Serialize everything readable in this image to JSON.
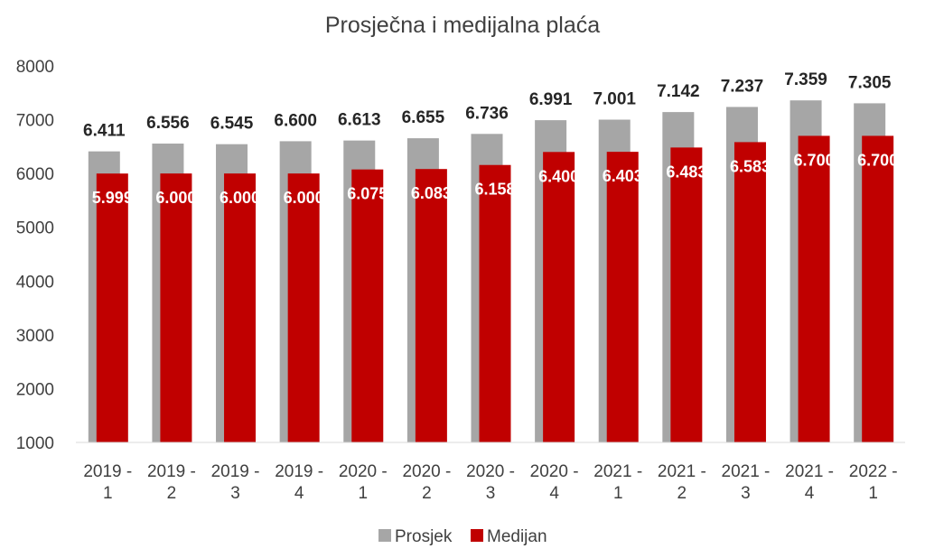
{
  "chart_data": {
    "type": "bar",
    "title": "Prosječna i medijalna plaća",
    "categories": [
      [
        "2019 -",
        "1"
      ],
      [
        "2019 -",
        "2"
      ],
      [
        "2019 -",
        "3"
      ],
      [
        "2019 -",
        "4"
      ],
      [
        "2020 -",
        "1"
      ],
      [
        "2020 -",
        "2"
      ],
      [
        "2020 -",
        "3"
      ],
      [
        "2020 -",
        "4"
      ],
      [
        "2021 -",
        "1"
      ],
      [
        "2021 -",
        "2"
      ],
      [
        "2021 -",
        "3"
      ],
      [
        "2021 -",
        "4"
      ],
      [
        "2022 -",
        "1"
      ]
    ],
    "series": [
      {
        "name": "Prosjek",
        "color": "#a6a6a6",
        "values": [
          6411,
          6556,
          6545,
          6600,
          6613,
          6655,
          6736,
          6991,
          7001,
          7142,
          7237,
          7359,
          7305
        ],
        "labels": [
          "6.411",
          "6.556",
          "6.545",
          "6.600",
          "6.613",
          "6.655",
          "6.736",
          "6.991",
          "7.001",
          "7.142",
          "7.237",
          "7.359",
          "7.305"
        ]
      },
      {
        "name": "Medijan",
        "color": "#c00000",
        "values": [
          5999,
          6000,
          6000,
          6000,
          6075,
          6083,
          6158,
          6400,
          6403,
          6483,
          6583,
          6700,
          6700
        ],
        "labels": [
          "5.999",
          "6.000",
          "6.000",
          "6.000",
          "6.075",
          "6.083",
          "6.158",
          "6.400",
          "6.403",
          "6.483",
          "6.583",
          "6.700",
          "6.700"
        ]
      }
    ],
    "ylim": [
      1000,
      8000
    ],
    "yticks": [
      1000,
      2000,
      3000,
      4000,
      5000,
      6000,
      7000,
      8000
    ],
    "grid": false,
    "legend": "bottom"
  }
}
